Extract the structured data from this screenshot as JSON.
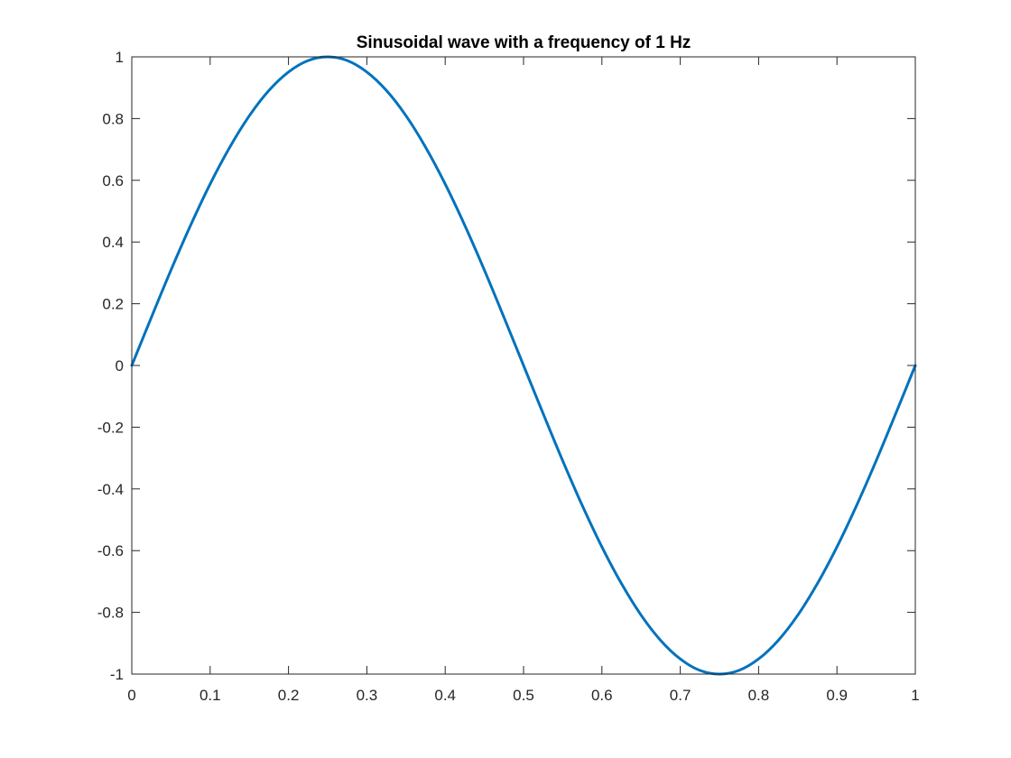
{
  "chart_data": {
    "type": "line",
    "title": "Sinusoidal wave with a frequency of 1 Hz",
    "xlabel": "",
    "ylabel": "",
    "xlim": [
      0,
      1
    ],
    "ylim": [
      -1,
      1
    ],
    "x_ticks": [
      0,
      0.1,
      0.2,
      0.3,
      0.4,
      0.5,
      0.6,
      0.7,
      0.8,
      0.9,
      1
    ],
    "x_tick_labels": [
      "0",
      "0.1",
      "0.2",
      "0.3",
      "0.4",
      "0.5",
      "0.6",
      "0.7",
      "0.8",
      "0.9",
      "1"
    ],
    "y_ticks": [
      -1,
      -0.8,
      -0.6,
      -0.4,
      -0.2,
      0,
      0.2,
      0.4,
      0.6,
      0.8,
      1
    ],
    "y_tick_labels": [
      "-1",
      "-0.8",
      "-0.6",
      "-0.4",
      "-0.2",
      "0",
      "0.2",
      "0.4",
      "0.6",
      "0.8",
      "1"
    ],
    "grid": false,
    "legend": "none",
    "series": [
      {
        "color": "#0072BD",
        "x": [
          0,
          0.025,
          0.05,
          0.075,
          0.1,
          0.125,
          0.15,
          0.175,
          0.2,
          0.225,
          0.25,
          0.275,
          0.3,
          0.325,
          0.35,
          0.375,
          0.4,
          0.425,
          0.45,
          0.475,
          0.5,
          0.525,
          0.55,
          0.575,
          0.6,
          0.625,
          0.65,
          0.675,
          0.7,
          0.725,
          0.75,
          0.775,
          0.8,
          0.825,
          0.85,
          0.875,
          0.9,
          0.925,
          0.95,
          0.975,
          1
        ],
        "y": [
          0,
          0.156,
          0.309,
          0.454,
          0.588,
          0.707,
          0.809,
          0.891,
          0.951,
          0.988,
          1,
          0.988,
          0.951,
          0.891,
          0.809,
          0.707,
          0.588,
          0.454,
          0.309,
          0.156,
          0,
          -0.156,
          -0.309,
          -0.454,
          -0.588,
          -0.707,
          -0.809,
          -0.891,
          -0.951,
          -0.988,
          -1,
          -0.988,
          -0.951,
          -0.891,
          -0.809,
          -0.707,
          -0.588,
          -0.454,
          -0.309,
          -0.156,
          0
        ]
      }
    ],
    "axis_color": "#262626"
  }
}
